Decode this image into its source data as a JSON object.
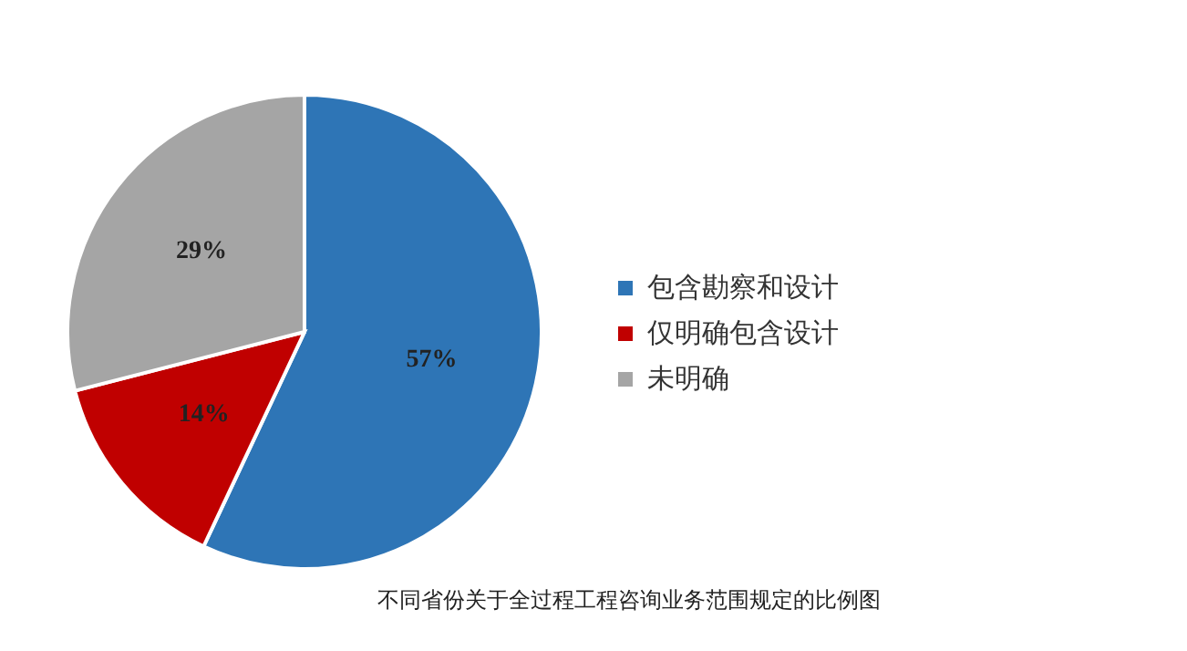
{
  "chart_data": {
    "type": "pie",
    "title": "不同省份关于全过程工程咨询业务范围规定的比例图",
    "categories": [
      "包含勘察和设计",
      "仅明确包含设计",
      "未明确"
    ],
    "values": [
      57,
      14,
      29
    ],
    "colors": [
      "#2e75b6",
      "#c00000",
      "#a5a5a5"
    ],
    "value_labels": [
      "57%",
      "14%",
      "29%"
    ],
    "legend": "right"
  }
}
